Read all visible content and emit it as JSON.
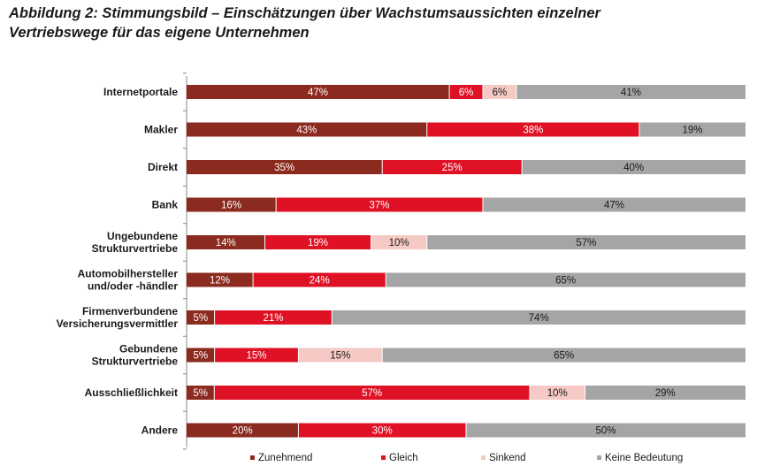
{
  "title": {
    "line1": "Abbildung 2: Stimmungsbild – Einschätzungen über Wachstumsaussichten einzelner",
    "line2": "Vertriebswege für das eigene Unternehmen"
  },
  "chart_data": {
    "type": "bar",
    "orientation": "horizontal",
    "stacked": "100%",
    "categories": [
      [
        "Internetportale"
      ],
      [
        "Makler"
      ],
      [
        "Direkt"
      ],
      [
        "Bank"
      ],
      [
        "Ungebundene",
        "Strukturvertriebe"
      ],
      [
        "Automobilhersteller",
        "und/oder -händler"
      ],
      [
        "Firmenverbundene",
        "Versicherungsvermittler"
      ],
      [
        "Gebundene",
        "Strukturvertriebe"
      ],
      [
        "Ausschließlichkeit"
      ],
      [
        "Andere"
      ]
    ],
    "series": [
      {
        "name": "Zunehmend",
        "color": "#8b2a1e",
        "label_color": "#ffffff",
        "values": [
          47,
          43,
          35,
          16,
          14,
          12,
          5,
          5,
          5,
          20
        ]
      },
      {
        "name": "Gleich",
        "color": "#df1125",
        "label_color": "#ffffff",
        "values": [
          6,
          38,
          25,
          37,
          19,
          24,
          21,
          15,
          57,
          30
        ]
      },
      {
        "name": "Sinkend",
        "color": "#f6c9c5",
        "label_color": "#1a1a1a",
        "values": [
          6,
          0,
          0,
          0,
          10,
          0,
          0,
          15,
          10,
          0
        ]
      },
      {
        "name": "Keine Bedeutung",
        "color": "#a5a5a5",
        "label_color": "#1a1a1a",
        "values": [
          41,
          19,
          40,
          47,
          57,
          65,
          74,
          65,
          29,
          50
        ]
      }
    ],
    "value_suffix": "%",
    "legend_position": "bottom",
    "grid": false
  }
}
